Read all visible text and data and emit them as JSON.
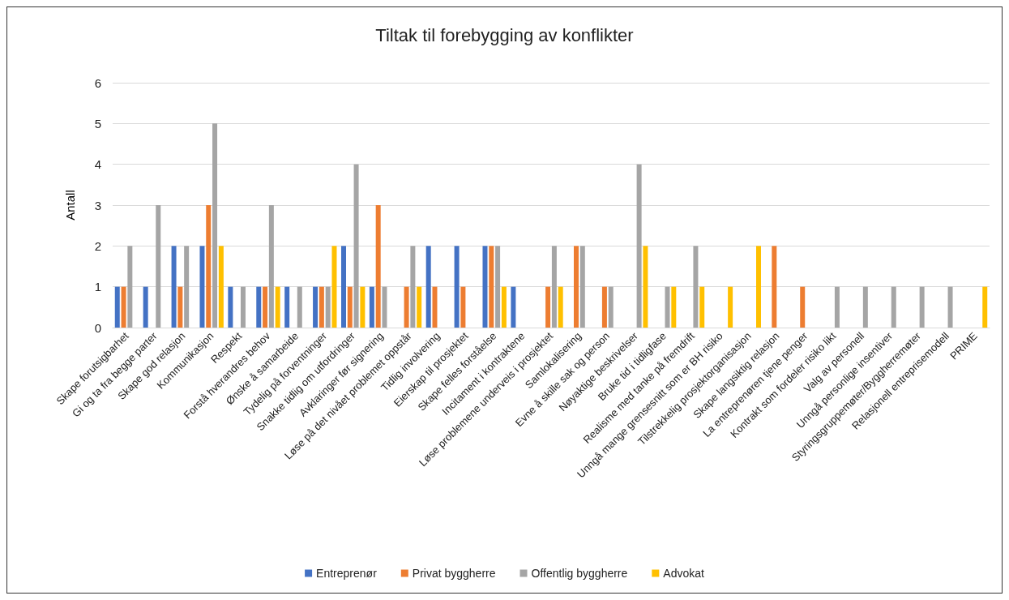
{
  "chart_data": {
    "type": "bar",
    "title": "Tiltak til forebygging av konflikter",
    "ylabel": "Antall",
    "categories": [
      "Skape forutsigbarhet",
      "Gi og ta fra begge parter",
      "Skape god relasjon",
      "Kommunikasjon",
      "Respekt",
      "Forstå hverandres behov",
      "Ønske å samarbeide",
      "Tydelig på forventninger",
      "Snakke tidlig om utfordringer",
      "Avklaringer før signering",
      "Løse på det nivået problemet oppstår",
      "Tidlig involvering",
      "Eierskap til prosjektet",
      "Skape felles forståelse",
      "Incitament i kontraktene",
      "Løse problemene underveis i prosjektet",
      "Samlokalisering",
      "Evne å skille sak og person",
      "Nøyaktige beskrivelser",
      "Bruke tid i tidligfase",
      "Realisme med tanke på fremdrift",
      "Unngå mange grensesnitt som er BH risiko",
      "Tilstrekkelig prosjektorganisasjon",
      "Skape langsiktig relasjon",
      "La entreprenøren tjene penger",
      "Kontrakt som fordeler risiko likt",
      "Valg av personell",
      "Unngå personlige insentiver",
      "Styringsgruppemøter/Byggherremøter",
      "Relasjonell entreprisemodell",
      "PRIME"
    ],
    "series": [
      {
        "name": "Entreprenør",
        "color": "#4472c4",
        "values": [
          1,
          1,
          2,
          2,
          1,
          1,
          1,
          1,
          2,
          1,
          0,
          2,
          2,
          2,
          1,
          0,
          0,
          0,
          0,
          0,
          0,
          0,
          0,
          0,
          0,
          0,
          0,
          0,
          0,
          0,
          0
        ]
      },
      {
        "name": "Privat byggherre",
        "color": "#ed7d31",
        "values": [
          1,
          0,
          1,
          3,
          0,
          1,
          0,
          1,
          1,
          3,
          1,
          1,
          1,
          2,
          0,
          1,
          2,
          1,
          0,
          0,
          0,
          0,
          0,
          2,
          1,
          0,
          0,
          0,
          0,
          0,
          0
        ]
      },
      {
        "name": "Offentlig byggherre",
        "color": "#a5a5a5",
        "values": [
          2,
          3,
          2,
          5,
          1,
          3,
          1,
          1,
          4,
          1,
          2,
          0,
          0,
          2,
          0,
          2,
          2,
          1,
          4,
          1,
          2,
          0,
          0,
          0,
          0,
          1,
          1,
          1,
          1,
          1,
          0
        ]
      },
      {
        "name": "Advokat",
        "color": "#ffc000",
        "values": [
          0,
          0,
          0,
          2,
          0,
          1,
          0,
          2,
          1,
          0,
          1,
          0,
          0,
          1,
          0,
          1,
          0,
          0,
          2,
          1,
          1,
          1,
          2,
          0,
          0,
          0,
          0,
          0,
          0,
          0,
          1
        ]
      }
    ],
    "ylim": [
      0,
      6
    ],
    "yticks": [
      0,
      1,
      2,
      3,
      4,
      5,
      6
    ],
    "grid": "y",
    "legend": "bottom"
  }
}
